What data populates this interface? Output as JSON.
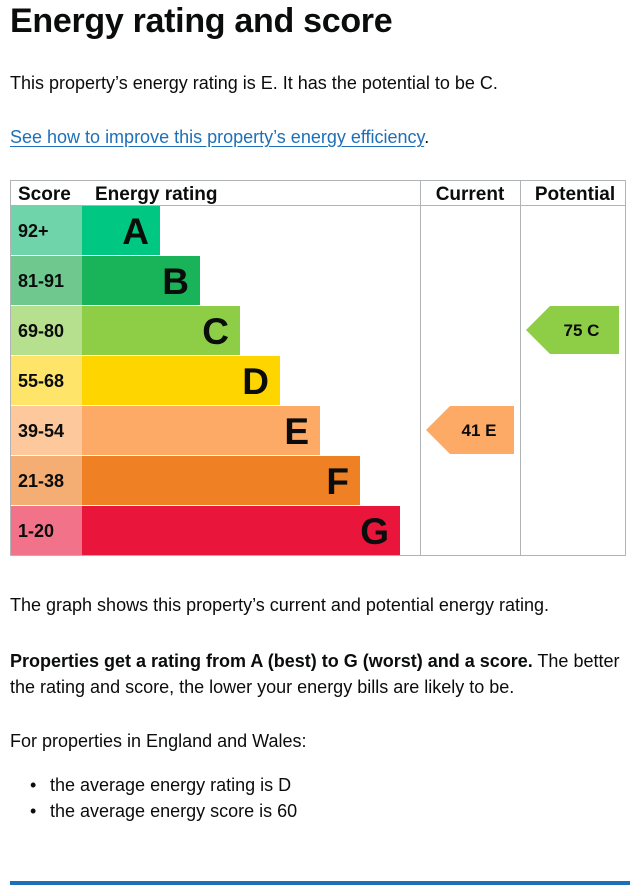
{
  "page": {
    "title": "Energy rating and score",
    "intro": "This property’s energy rating is E. It has the potential to be C.",
    "improve_link": "See how to improve this property’s energy efficiency",
    "improve_link_suffix": ".",
    "graph_note": "The graph shows this property’s current and potential energy rating.",
    "rating_bold": "Properties get a rating from A (best) to G (worst) and a score.",
    "rating_rest": " The better the rating and score, the lower your energy bills are likely to be.",
    "averages_intro": "For properties in England and Wales:",
    "averages": [
      "the average energy rating is D",
      "the average energy score is 60"
    ]
  },
  "chart_data": {
    "type": "table",
    "headers": {
      "score": "Score",
      "rating": "Energy rating",
      "current": "Current",
      "potential": "Potential"
    },
    "bands": [
      {
        "letter": "A",
        "range": "92+",
        "color": "#00c781",
        "score_color": "#6fd4a9"
      },
      {
        "letter": "B",
        "range": "81-91",
        "color": "#19b459",
        "score_color": "#6fc98f"
      },
      {
        "letter": "C",
        "range": "69-80",
        "color": "#8dce46",
        "score_color": "#b7e08e"
      },
      {
        "letter": "D",
        "range": "55-68",
        "color": "#ffd500",
        "score_color": "#ffe46a"
      },
      {
        "letter": "E",
        "range": "39-54",
        "color": "#fcaa65",
        "score_color": "#fdc89b"
      },
      {
        "letter": "F",
        "range": "21-38",
        "color": "#ef8023",
        "score_color": "#f4ad72"
      },
      {
        "letter": "G",
        "range": "1-20",
        "color": "#e9153b",
        "score_color": "#f27389"
      }
    ],
    "current": {
      "score": 41,
      "rating": "E",
      "label": "41  E",
      "color": "#fcaa65"
    },
    "potential": {
      "score": 75,
      "rating": "C",
      "label": "75  C",
      "color": "#8dce46"
    }
  }
}
